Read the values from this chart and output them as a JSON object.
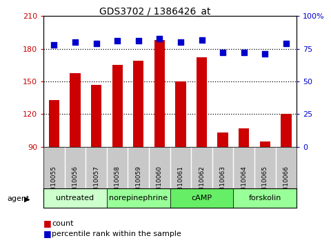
{
  "title": "GDS3702 / 1386426_at",
  "samples": [
    "GSM310055",
    "GSM310056",
    "GSM310057",
    "GSM310058",
    "GSM310059",
    "GSM310060",
    "GSM310061",
    "GSM310062",
    "GSM310063",
    "GSM310064",
    "GSM310065",
    "GSM310066"
  ],
  "counts": [
    133,
    158,
    147,
    165,
    169,
    188,
    150,
    172,
    103,
    107,
    95,
    120
  ],
  "percentiles": [
    78,
    80,
    79,
    81,
    81,
    83,
    80,
    82,
    72,
    72,
    71,
    79
  ],
  "agents": [
    {
      "label": "untreated",
      "start": 0,
      "end": 3,
      "color": "#ccffcc"
    },
    {
      "label": "norepinephrine",
      "start": 3,
      "end": 6,
      "color": "#99ff99"
    },
    {
      "label": "cAMP",
      "start": 6,
      "end": 9,
      "color": "#66ee66"
    },
    {
      "label": "forskolin",
      "start": 9,
      "end": 12,
      "color": "#99ff99"
    }
  ],
  "ylim_left": [
    90,
    210
  ],
  "ylim_right": [
    0,
    100
  ],
  "yticks_left": [
    90,
    120,
    150,
    180,
    210
  ],
  "yticks_right": [
    0,
    25,
    50,
    75,
    100
  ],
  "left_color": "#cc0000",
  "right_color": "#0000cc",
  "bar_color": "#cc0000",
  "dot_color": "#0000cc",
  "tick_area_color": "#c8c8c8",
  "legend_count_color": "#cc0000",
  "legend_pct_color": "#0000cc",
  "dotted_lines": [
    180,
    150,
    120
  ],
  "bar_width": 0.5,
  "dot_size": 30
}
